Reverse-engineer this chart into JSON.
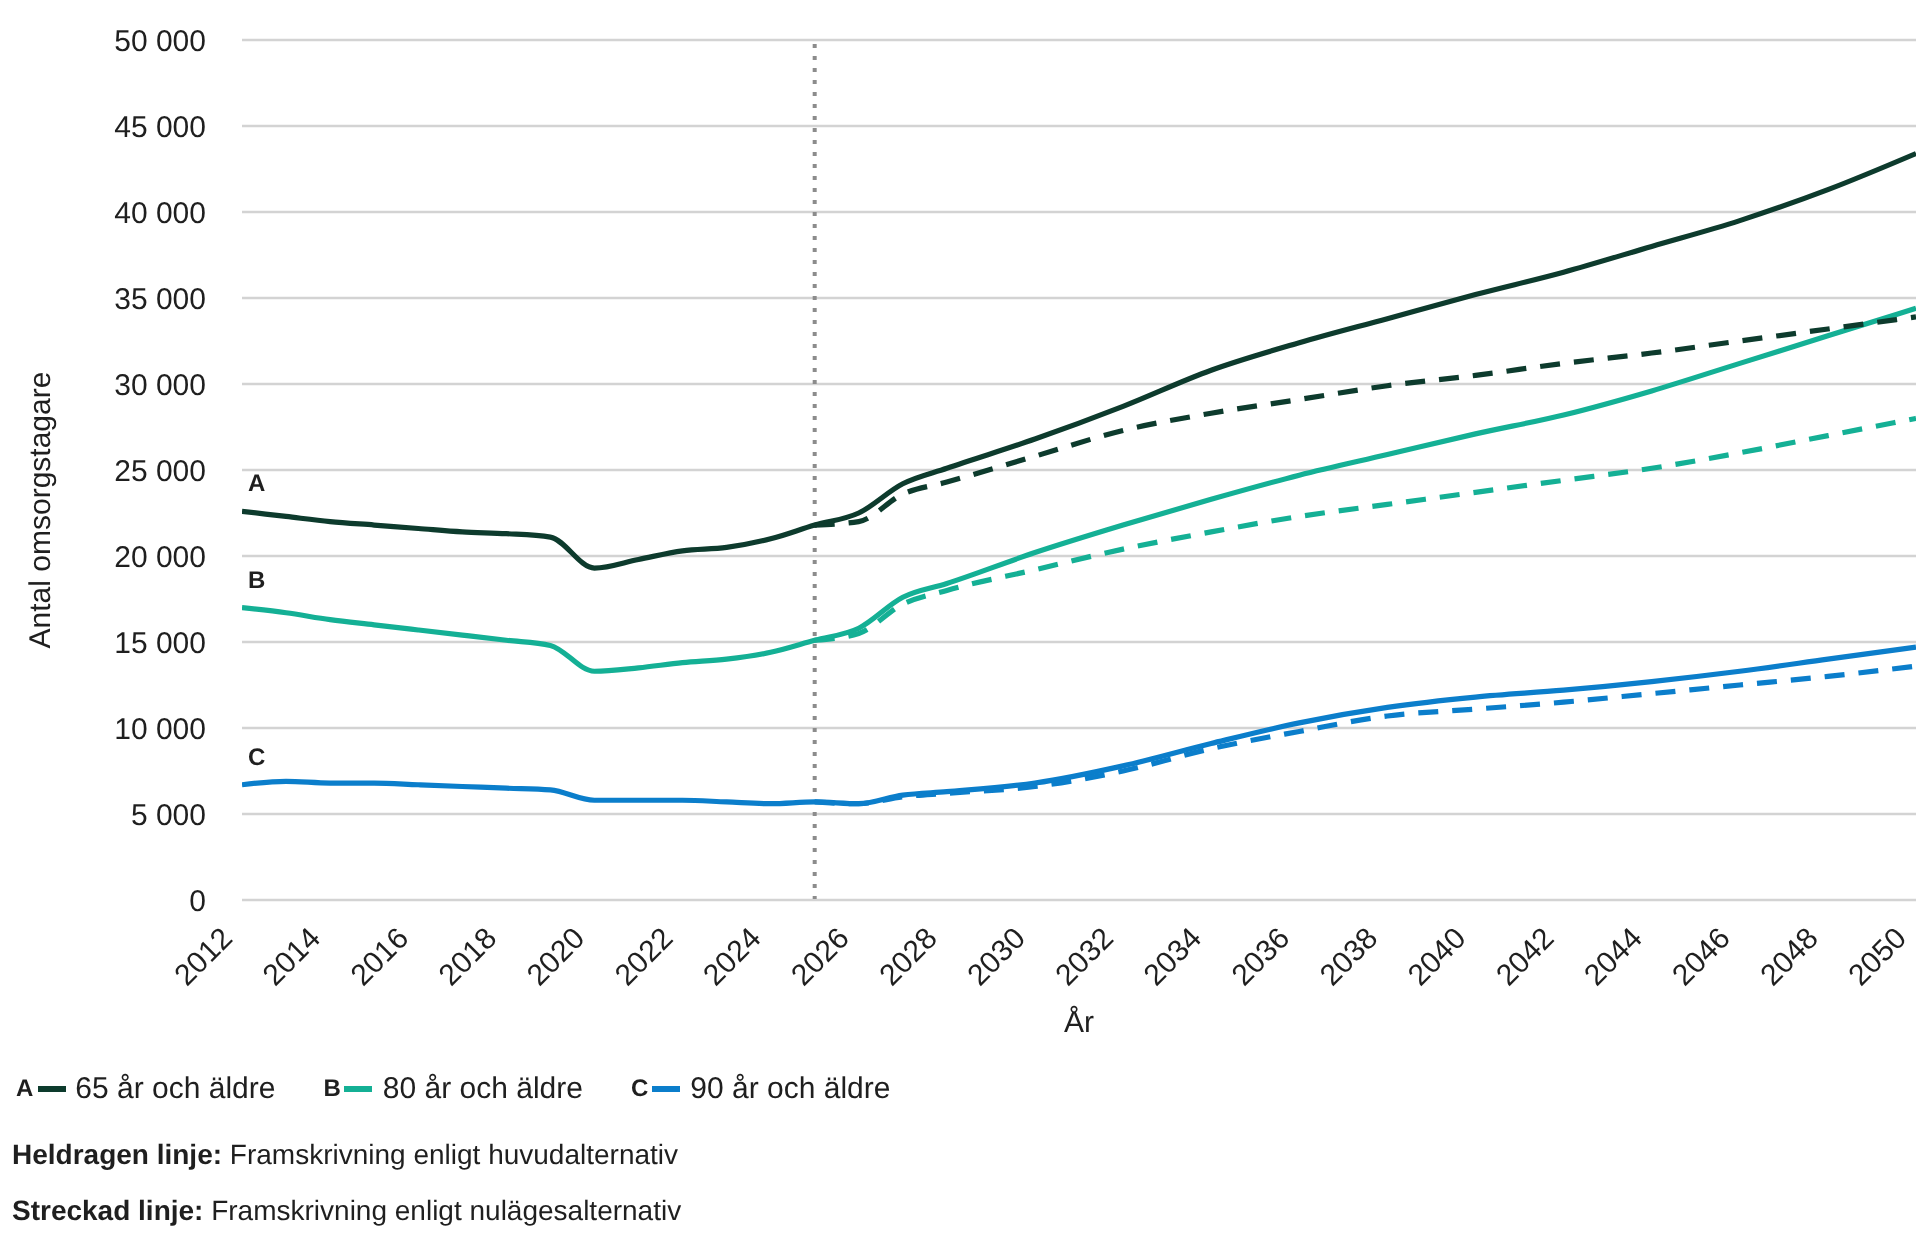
{
  "chart_data": {
    "type": "line",
    "xlabel": "År",
    "ylabel": "Antal omsorgstagare",
    "x": [
      2012,
      2013,
      2014,
      2015,
      2016,
      2017,
      2018,
      2019,
      2020,
      2021,
      2022,
      2023,
      2024,
      2025,
      2026,
      2027,
      2028,
      2030,
      2032,
      2034,
      2036,
      2038,
      2040,
      2042,
      2044,
      2046,
      2048,
      2050
    ],
    "series": [
      {
        "name": "65 år och äldre",
        "color": "#0d3b2d",
        "line_style": "solid",
        "values": [
          22600,
          22300,
          22000,
          21800,
          21600,
          21400,
          21300,
          21100,
          19300,
          19800,
          20300,
          20500,
          21000,
          21800,
          22500,
          24200,
          25100,
          26800,
          28700,
          30800,
          32400,
          33800,
          35200,
          36500,
          38000,
          39500,
          41300,
          43400
        ]
      },
      {
        "name": "80 år och äldre",
        "color": "#14b095",
        "line_style": "solid",
        "values": [
          17000,
          16700,
          16300,
          16000,
          15700,
          15400,
          15100,
          14800,
          13300,
          13500,
          13800,
          14000,
          14400,
          15100,
          15800,
          17600,
          18400,
          20200,
          21800,
          23300,
          24700,
          25900,
          27100,
          28200,
          29600,
          31200,
          32800,
          34400
        ]
      },
      {
        "name": "90 år och äldre",
        "color": "#0b7ecb",
        "line_style": "solid",
        "values": [
          6700,
          6900,
          6800,
          6800,
          6700,
          6600,
          6500,
          6400,
          5800,
          5800,
          5800,
          5700,
          5600,
          5700,
          5600,
          6100,
          6300,
          6800,
          7800,
          9100,
          10300,
          11200,
          11800,
          12200,
          12700,
          13300,
          14000,
          14700
        ]
      },
      {
        "color": "#0d3b2d",
        "line_style": "dashed",
        "values": [
          null,
          null,
          null,
          null,
          null,
          null,
          null,
          null,
          null,
          null,
          null,
          null,
          null,
          21800,
          22000,
          23600,
          24300,
          25800,
          27300,
          28300,
          29100,
          29900,
          30500,
          31200,
          31800,
          32500,
          33200,
          33900
        ]
      },
      {
        "color": "#14b095",
        "line_style": "dashed",
        "values": [
          null,
          null,
          null,
          null,
          null,
          null,
          null,
          null,
          null,
          null,
          null,
          null,
          null,
          15100,
          15500,
          17200,
          18000,
          19200,
          20400,
          21400,
          22300,
          23000,
          23700,
          24400,
          25100,
          26000,
          27000,
          28000
        ]
      },
      {
        "color": "#0b7ecb",
        "line_style": "dashed",
        "values": [
          null,
          null,
          null,
          null,
          null,
          null,
          null,
          null,
          null,
          null,
          null,
          null,
          null,
          5700,
          5600,
          6000,
          6200,
          6600,
          7500,
          8800,
          9800,
          10700,
          11100,
          11500,
          12000,
          12500,
          13000,
          13600
        ]
      }
    ],
    "xlim": [
      2012,
      2050
    ],
    "xticks": [
      2012,
      2014,
      2016,
      2018,
      2020,
      2022,
      2024,
      2026,
      2028,
      2030,
      2032,
      2034,
      2036,
      2038,
      2040,
      2042,
      2044,
      2046,
      2048,
      2050
    ],
    "ylim": [
      0,
      50000
    ],
    "yticks": [
      0,
      {
        "value": 5000,
        "label": "5 000"
      },
      {
        "value": 10000,
        "label": "10 000"
      },
      {
        "value": 15000,
        "label": "15 000"
      },
      {
        "value": 20000,
        "label": "20 000"
      },
      {
        "value": 25000,
        "label": "25 000"
      },
      {
        "value": 30000,
        "label": "30 000"
      },
      {
        "value": 35000,
        "label": "35 000"
      },
      {
        "value": 40000,
        "label": "40 000"
      },
      {
        "value": 45000,
        "label": "45 000"
      },
      {
        "value": 50000,
        "label": "50 000"
      }
    ],
    "ref_lines": [
      {
        "axis": "x",
        "value": 2025,
        "color": "#8c8c8c",
        "line_style": "dotted"
      }
    ],
    "annotations": [
      "A",
      "B",
      "C",
      "Heldragen linje: Framskrivning enligt huvudalternativ",
      "Streckad linje: Framskrivning enligt nulägesalternativ"
    ],
    "grid": "y",
    "legend": "bottom left"
  }
}
